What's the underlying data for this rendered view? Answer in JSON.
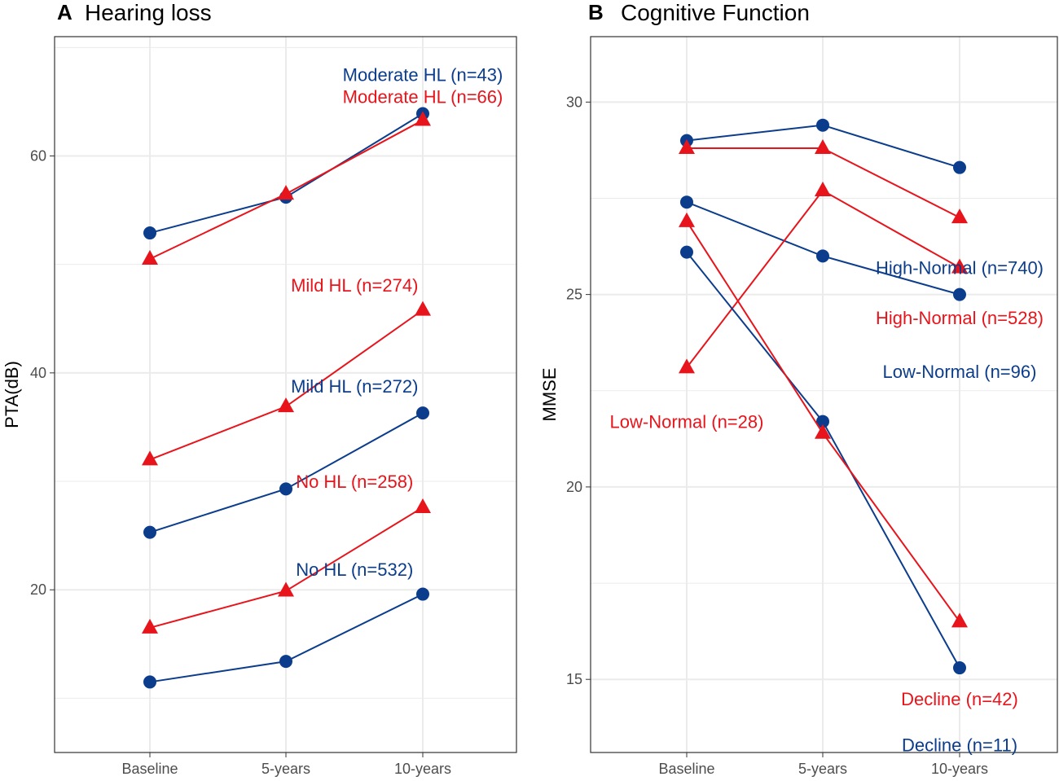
{
  "colors": {
    "blue": "#0b3d8c",
    "red": "#e8141b",
    "grid": "#ebebeb",
    "frame": "#333333"
  },
  "chart_data": [
    {
      "type": "line",
      "panel_letter": "A",
      "title": "Hearing loss",
      "xlabel": "",
      "ylabel": "PTA(dB)",
      "categories": [
        "Baseline",
        "5-years",
        "10-years"
      ],
      "ylim": [
        5,
        71
      ],
      "yticks": [
        20,
        40,
        60
      ],
      "series": [
        {
          "name": "No HL (n=532)",
          "color": "blue",
          "marker": "circle",
          "values": [
            11.5,
            13.4,
            19.6
          ]
        },
        {
          "name": "No HL (n=258)",
          "color": "red",
          "marker": "triangle",
          "values": [
            16.5,
            19.9,
            27.6
          ]
        },
        {
          "name": "Mild HL (n=272)",
          "color": "blue",
          "marker": "circle",
          "values": [
            25.3,
            29.3,
            36.3
          ]
        },
        {
          "name": "Mild HL (n=274)",
          "color": "red",
          "marker": "triangle",
          "values": [
            32.0,
            36.9,
            45.8
          ]
        },
        {
          "name": "Moderate HL (n=43)",
          "color": "blue",
          "marker": "circle",
          "values": [
            52.9,
            56.2,
            63.9
          ]
        },
        {
          "name": "Moderate HL (n=66)",
          "color": "red",
          "marker": "triangle",
          "values": [
            50.5,
            56.5,
            63.3
          ]
        }
      ],
      "annotations": [
        {
          "text": "Moderate HL (n=43)",
          "color": "blue",
          "x": 2,
          "y": 67.5
        },
        {
          "text": "Moderate HL (n=66)",
          "color": "red",
          "x": 2,
          "y": 65.5
        },
        {
          "text": "Mild HL (n=274)",
          "color": "red",
          "x": 1.5,
          "y": 48.1
        },
        {
          "text": "Mild HL (n=272)",
          "color": "blue",
          "x": 1.5,
          "y": 38.8
        },
        {
          "text": "No HL (n=258)",
          "color": "red",
          "x": 1.5,
          "y": 30.0
        },
        {
          "text": "No HL (n=532)",
          "color": "blue",
          "x": 1.5,
          "y": 21.9
        }
      ]
    },
    {
      "type": "line",
      "panel_letter": "B",
      "title": "Cognitive Function",
      "xlabel": "",
      "ylabel": "MMSE",
      "categories": [
        "Baseline",
        "5-years",
        "10-years"
      ],
      "ylim": [
        13.1,
        31.7
      ],
      "yticks": [
        15,
        20,
        25,
        30
      ],
      "series": [
        {
          "name": "High-Normal (n=740)",
          "color": "blue",
          "marker": "circle",
          "values": [
            29.0,
            29.4,
            28.3
          ]
        },
        {
          "name": "High-Normal (n=528)",
          "color": "red",
          "marker": "triangle",
          "values": [
            28.8,
            28.8,
            27.0
          ]
        },
        {
          "name": "Low-Normal (n=96)",
          "color": "blue",
          "marker": "circle",
          "values": [
            27.4,
            26.0,
            25.0
          ]
        },
        {
          "name": "Low-Normal (n=28)",
          "color": "red",
          "marker": "triangle",
          "values": [
            23.1,
            27.7,
            25.7
          ]
        },
        {
          "name": "Decline (n=11)",
          "color": "blue",
          "marker": "circle",
          "values": [
            26.1,
            21.7,
            15.3
          ]
        },
        {
          "name": "Decline (n=42)",
          "color": "red",
          "marker": "triangle",
          "values": [
            26.9,
            21.4,
            16.5
          ]
        }
      ],
      "annotations": [
        {
          "text": "High-Normal (n=740)",
          "color": "blue",
          "x": 2,
          "y": 25.7
        },
        {
          "text": "High-Normal (n=528)",
          "color": "red",
          "x": 2,
          "y": 24.4
        },
        {
          "text": "Low-Normal (n=96)",
          "color": "blue",
          "x": 2,
          "y": 23.0
        },
        {
          "text": "Low-Normal (n=28)",
          "color": "red",
          "x": 0,
          "y": 21.7
        },
        {
          "text": "Decline (n=42)",
          "color": "red",
          "x": 2,
          "y": 14.5
        },
        {
          "text": "Decline (n=11)",
          "color": "blue",
          "x": 2,
          "y": 13.3
        }
      ]
    }
  ]
}
